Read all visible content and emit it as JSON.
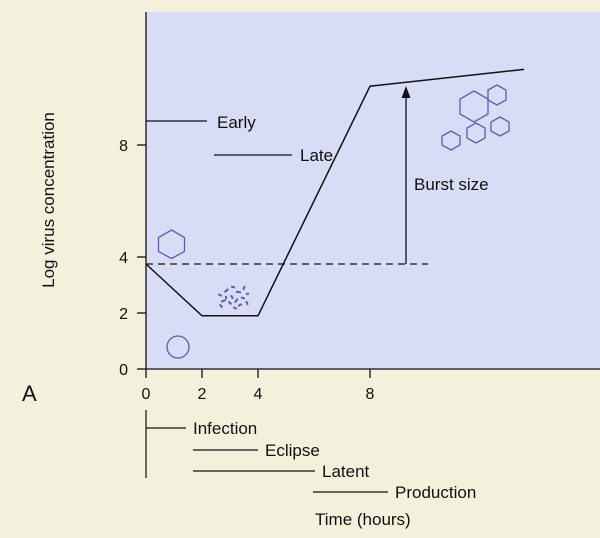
{
  "panel_label": "A",
  "colors": {
    "background": "#f3f1dc",
    "plot_area": "#d8dcf5",
    "line": "#111111",
    "virus_shape": "#5b5fae"
  },
  "chart_data": {
    "type": "line",
    "ylabel": "Log virus concentration",
    "xlabel": "Time (hours)",
    "x_ticks": [
      "0",
      "2",
      "4",
      "8"
    ],
    "y_ticks": [
      "0",
      "2",
      "4",
      "8"
    ],
    "xlim": [
      0,
      13.5
    ],
    "ylim": [
      0,
      12.5
    ],
    "series": [
      {
        "x": [
          0,
          2,
          4,
          8,
          13.5
        ],
        "y": [
          3.75,
          1.9,
          1.9,
          10.1,
          10.7
        ]
      }
    ],
    "reference_line_y": 3.75,
    "annotations": {
      "early": "Early",
      "late": "Late",
      "burst_size": "Burst size"
    }
  },
  "phases": {
    "infection": "Infection",
    "eclipse": "Eclipse",
    "latent": "Latent",
    "production": "Production"
  },
  "icons": [
    "hexagon-virion-icon",
    "round-virion-icon",
    "uncoated-fragments-icon",
    "virion-cluster-icon"
  ]
}
